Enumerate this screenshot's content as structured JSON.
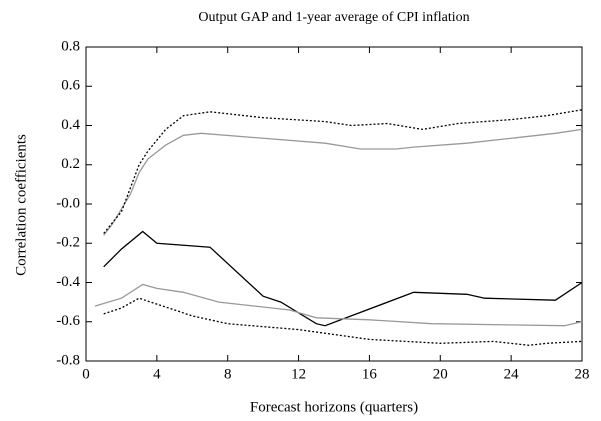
{
  "chart_data": {
    "type": "line",
    "title": "Output GAP and 1-year average of CPI inflation",
    "x_label": "Forecast horizons (quarters)",
    "y_label": "Correlation coefficients",
    "xlim": [
      0,
      28
    ],
    "xticks": [
      0,
      4,
      8,
      12,
      16,
      20,
      24,
      28
    ],
    "ylim": [
      -0.8,
      0.8
    ],
    "yticks": [
      0.8,
      0.6,
      0.4,
      0.2,
      {
        "value": 0,
        "label": "-0.0"
      },
      -0.2,
      -0.4,
      -0.6,
      -0.8
    ],
    "series": [
      {
        "color": "#000000",
        "style": "solid",
        "x": [
          1,
          2,
          3.2,
          4,
          7,
          10,
          11,
          13,
          13.5,
          18.5,
          21.5,
          22.5,
          26.5,
          28
        ],
        "values": [
          -0.32,
          -0.23,
          -0.14,
          -0.2,
          -0.22,
          -0.47,
          -0.5,
          -0.61,
          -0.62,
          -0.45,
          -0.46,
          -0.48,
          -0.49,
          -0.4
        ]
      },
      {
        "color": "#999999",
        "style": "solid",
        "x": [
          1,
          1.5,
          2.5,
          3,
          3.5,
          4.5,
          5.5,
          6.5,
          13.5,
          15.5,
          17.5,
          18.5,
          21.5,
          24.5,
          26.5,
          28
        ],
        "values": [
          -0.16,
          -0.1,
          0.05,
          0.16,
          0.23,
          0.3,
          0.35,
          0.36,
          0.31,
          0.28,
          0.28,
          0.29,
          0.31,
          0.34,
          0.36,
          0.38
        ]
      },
      {
        "color": "#000000",
        "style": "dotted",
        "x": [
          1,
          2,
          3,
          3.5,
          4.5,
          5.5,
          7,
          10,
          13.5,
          15,
          17,
          19,
          21,
          24,
          26,
          28
        ],
        "values": [
          -0.15,
          -0.04,
          0.2,
          0.27,
          0.38,
          0.45,
          0.47,
          0.44,
          0.42,
          0.4,
          0.41,
          0.38,
          0.41,
          0.43,
          0.45,
          0.48
        ]
      },
      {
        "color": "#999999",
        "style": "solid",
        "x": [
          0.5,
          2,
          3.2,
          4,
          5.5,
          7.5,
          11.5,
          13,
          16,
          19.5,
          27,
          28
        ],
        "values": [
          -0.52,
          -0.48,
          -0.41,
          -0.43,
          -0.45,
          -0.5,
          -0.54,
          -0.58,
          -0.59,
          -0.61,
          -0.62,
          -0.6
        ]
      },
      {
        "color": "#000000",
        "style": "dotted",
        "x": [
          1,
          2,
          3,
          4,
          6,
          8,
          12,
          16,
          20,
          23,
          25,
          26,
          28
        ],
        "values": [
          -0.56,
          -0.53,
          -0.48,
          -0.51,
          -0.57,
          -0.61,
          -0.64,
          -0.69,
          -0.71,
          -0.7,
          -0.72,
          -0.71,
          -0.7
        ]
      }
    ]
  }
}
